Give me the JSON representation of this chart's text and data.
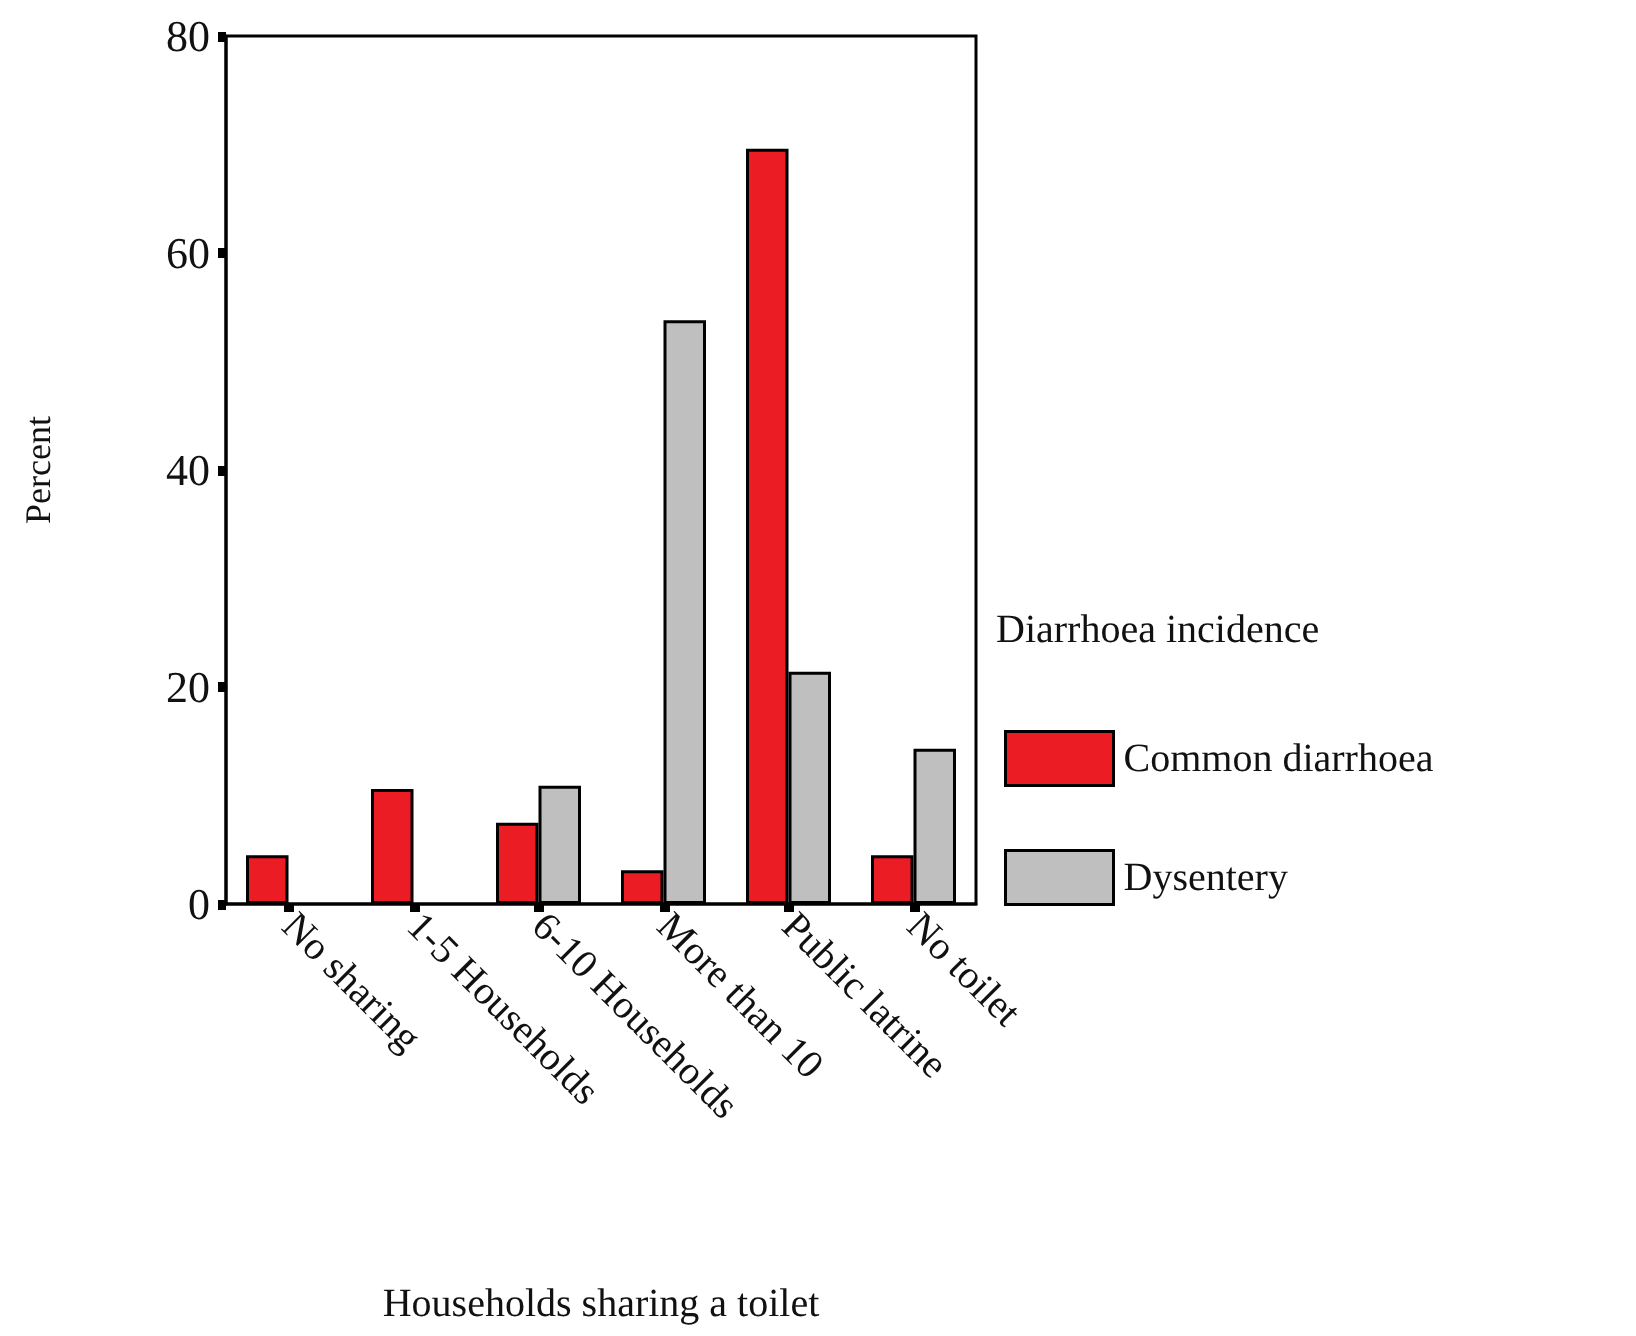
{
  "chart_data": {
    "type": "bar",
    "xlabel": "Households sharing a toilet",
    "ylabel": "Percent",
    "legend_title": "Diarrhoea incidence",
    "categories": [
      "No sharing",
      "1-5 Households",
      "6-10 Households",
      "More than 10",
      "Public latrine",
      "No toilet"
    ],
    "series": [
      {
        "name": "Common diarrhoea",
        "color": "#ec1c24",
        "values": [
          4.5,
          10.6,
          7.5,
          3.1,
          69.6,
          4.5
        ]
      },
      {
        "name": "Dysentery",
        "color": "#c0bfc0",
        "values": [
          null,
          null,
          10.9,
          53.8,
          21.4,
          14.3
        ]
      }
    ],
    "ylim": [
      0,
      80
    ],
    "yticks": [
      0,
      20,
      40,
      60,
      80
    ],
    "grid": false,
    "legend": "right"
  }
}
